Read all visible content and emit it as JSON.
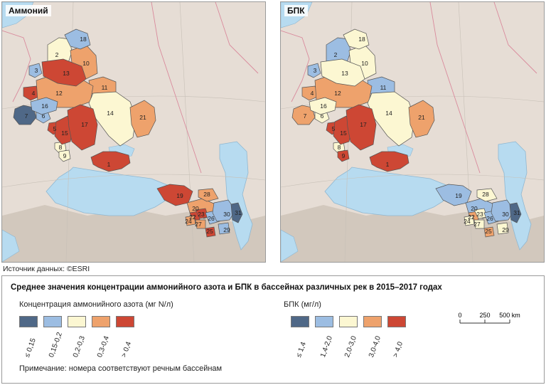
{
  "maps": [
    {
      "title": "Аммоний",
      "basins": [
        {
          "id": "1",
          "category": 4
        },
        {
          "id": "2",
          "category": 2
        },
        {
          "id": "3",
          "category": 1
        },
        {
          "id": "4",
          "category": 4
        },
        {
          "id": "5",
          "category": 4
        },
        {
          "id": "6",
          "category": 1
        },
        {
          "id": "7",
          "category": 0
        },
        {
          "id": "8",
          "category": 2
        },
        {
          "id": "9",
          "category": 2
        },
        {
          "id": "10",
          "category": 3
        },
        {
          "id": "11",
          "category": 3
        },
        {
          "id": "12",
          "category": 3
        },
        {
          "id": "13",
          "category": 4
        },
        {
          "id": "14",
          "category": 2
        },
        {
          "id": "15",
          "category": 4
        },
        {
          "id": "16",
          "category": 1
        },
        {
          "id": "17",
          "category": 4
        },
        {
          "id": "18",
          "category": 1
        },
        {
          "id": "19",
          "category": 4
        },
        {
          "id": "20",
          "category": 3
        },
        {
          "id": "21",
          "category": 3
        },
        {
          "id": "22",
          "category": 4
        },
        {
          "id": "23",
          "category": 4
        },
        {
          "id": "24",
          "category": 3
        },
        {
          "id": "25",
          "category": 4
        },
        {
          "id": "26",
          "category": 1
        },
        {
          "id": "27",
          "category": 3
        },
        {
          "id": "28",
          "category": 3
        },
        {
          "id": "29",
          "category": 1
        },
        {
          "id": "30",
          "category": 1
        },
        {
          "id": "31",
          "category": 0
        }
      ]
    },
    {
      "title": "БПК",
      "basins": [
        {
          "id": "1",
          "category": 4
        },
        {
          "id": "2",
          "category": 1
        },
        {
          "id": "3",
          "category": 1
        },
        {
          "id": "4",
          "category": 3
        },
        {
          "id": "5",
          "category": 4
        },
        {
          "id": "6",
          "category": 2
        },
        {
          "id": "7",
          "category": 3
        },
        {
          "id": "8",
          "category": 2
        },
        {
          "id": "9",
          "category": 4
        },
        {
          "id": "10",
          "category": 2
        },
        {
          "id": "11",
          "category": 1
        },
        {
          "id": "12",
          "category": 3
        },
        {
          "id": "13",
          "category": 2
        },
        {
          "id": "14",
          "category": 2
        },
        {
          "id": "15",
          "category": 4
        },
        {
          "id": "16",
          "category": 2
        },
        {
          "id": "17",
          "category": 4
        },
        {
          "id": "18",
          "category": 2
        },
        {
          "id": "19",
          "category": 1
        },
        {
          "id": "20",
          "category": 1
        },
        {
          "id": "21",
          "category": 3
        },
        {
          "id": "22",
          "category": 3
        },
        {
          "id": "23",
          "category": 2
        },
        {
          "id": "24",
          "category": 2
        },
        {
          "id": "25",
          "category": 3
        },
        {
          "id": "26",
          "category": 1
        },
        {
          "id": "27",
          "category": 2
        },
        {
          "id": "28",
          "category": 2
        },
        {
          "id": "29",
          "category": 2
        },
        {
          "id": "30",
          "category": 1
        },
        {
          "id": "31",
          "category": 0
        }
      ]
    }
  ],
  "class_colors": [
    "#4f6887",
    "#9cbde2",
    "#fcf7d2",
    "#eea26c",
    "#cd4734"
  ],
  "source": "Источник данных:  ©ESRI",
  "legend": {
    "title": "Среднее значения концентрации аммонийного азота и БПК в бассейнах различных рек в 2015–2017 годах",
    "ammonium": {
      "caption": "Концентрация аммонийного азота (мг N/л)",
      "classes": [
        "≤ 0,15",
        "0,15-0,2",
        "0,2-0,3",
        "0,3-0,4",
        "> 0,4"
      ]
    },
    "bod": {
      "caption": "БПК (мг/л)",
      "classes": [
        "≤ 1,4",
        "1,4-2,0",
        "2,0-3,0",
        "3,0-4,0",
        "> 4,0"
      ]
    },
    "scale": {
      "ticks": [
        "0",
        "250",
        "500 km"
      ]
    },
    "note": "Примечание: номера соответствуют речным бассейнам"
  }
}
